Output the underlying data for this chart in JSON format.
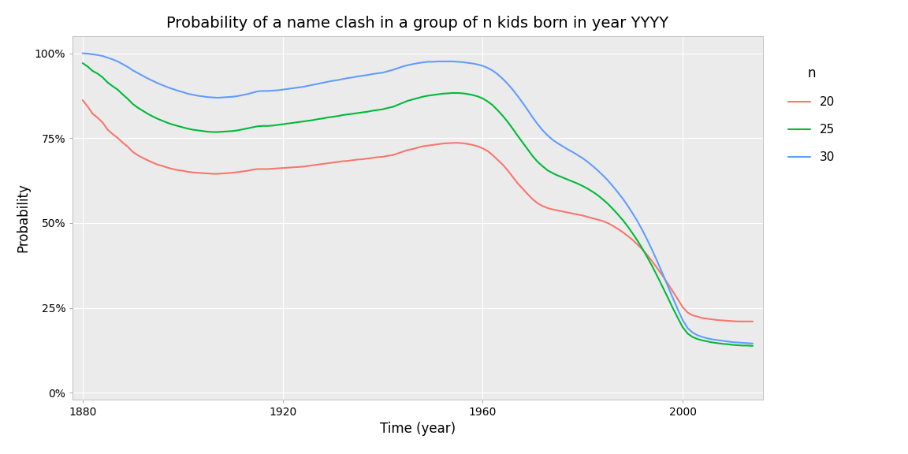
{
  "title": "Probability of a name clash in a group of n kids born in year YYYY",
  "xlabel": "Time (year)",
  "ylabel": "Probability",
  "background_color": "#EBEBEB",
  "grid_color": "#FFFFFF",
  "outer_color": "#FFFFFF",
  "line_colors": {
    "20": "#F8766D",
    "25": "#00BA38",
    "30": "#619CFF"
  },
  "line_width": 1.5,
  "legend_title": "n",
  "years": [
    1880,
    1881,
    1882,
    1883,
    1884,
    1885,
    1886,
    1887,
    1888,
    1889,
    1890,
    1891,
    1892,
    1893,
    1894,
    1895,
    1896,
    1897,
    1898,
    1899,
    1900,
    1901,
    1902,
    1903,
    1904,
    1905,
    1906,
    1907,
    1908,
    1909,
    1910,
    1911,
    1912,
    1913,
    1914,
    1915,
    1916,
    1917,
    1918,
    1919,
    1920,
    1921,
    1922,
    1923,
    1924,
    1925,
    1926,
    1927,
    1928,
    1929,
    1930,
    1931,
    1932,
    1933,
    1934,
    1935,
    1936,
    1937,
    1938,
    1939,
    1940,
    1941,
    1942,
    1943,
    1944,
    1945,
    1946,
    1947,
    1948,
    1949,
    1950,
    1951,
    1952,
    1953,
    1954,
    1955,
    1956,
    1957,
    1958,
    1959,
    1960,
    1961,
    1962,
    1963,
    1964,
    1965,
    1966,
    1967,
    1968,
    1969,
    1970,
    1971,
    1972,
    1973,
    1974,
    1975,
    1976,
    1977,
    1978,
    1979,
    1980,
    1981,
    1982,
    1983,
    1984,
    1985,
    1986,
    1987,
    1988,
    1989,
    1990,
    1991,
    1992,
    1993,
    1994,
    1995,
    1996,
    1997,
    1998,
    1999,
    2000,
    2001,
    2002,
    2003,
    2004,
    2005,
    2006,
    2007,
    2008,
    2009,
    2010,
    2011,
    2012,
    2013,
    2014
  ],
  "n20": [
    0.862,
    0.843,
    0.822,
    0.81,
    0.796,
    0.775,
    0.762,
    0.751,
    0.737,
    0.725,
    0.71,
    0.7,
    0.692,
    0.685,
    0.678,
    0.672,
    0.668,
    0.663,
    0.659,
    0.656,
    0.654,
    0.651,
    0.649,
    0.648,
    0.647,
    0.646,
    0.645,
    0.645,
    0.646,
    0.647,
    0.648,
    0.65,
    0.652,
    0.654,
    0.657,
    0.659,
    0.659,
    0.659,
    0.66,
    0.661,
    0.662,
    0.663,
    0.664,
    0.665,
    0.666,
    0.668,
    0.67,
    0.672,
    0.674,
    0.676,
    0.678,
    0.68,
    0.682,
    0.683,
    0.685,
    0.687,
    0.688,
    0.69,
    0.692,
    0.694,
    0.695,
    0.698,
    0.7,
    0.705,
    0.71,
    0.715,
    0.718,
    0.722,
    0.726,
    0.728,
    0.73,
    0.732,
    0.734,
    0.735,
    0.736,
    0.736,
    0.735,
    0.733,
    0.73,
    0.726,
    0.72,
    0.712,
    0.7,
    0.686,
    0.672,
    0.655,
    0.636,
    0.617,
    0.601,
    0.585,
    0.57,
    0.558,
    0.55,
    0.544,
    0.54,
    0.537,
    0.534,
    0.531,
    0.528,
    0.525,
    0.522,
    0.518,
    0.514,
    0.51,
    0.506,
    0.5,
    0.492,
    0.483,
    0.473,
    0.462,
    0.45,
    0.436,
    0.421,
    0.404,
    0.385,
    0.365,
    0.344,
    0.322,
    0.299,
    0.276,
    0.252,
    0.236,
    0.228,
    0.224,
    0.22,
    0.218,
    0.216,
    0.214,
    0.213,
    0.212,
    0.211,
    0.21,
    0.21,
    0.21,
    0.21
  ],
  "n25": [
    0.971,
    0.961,
    0.948,
    0.94,
    0.929,
    0.914,
    0.903,
    0.893,
    0.879,
    0.866,
    0.851,
    0.84,
    0.831,
    0.822,
    0.814,
    0.807,
    0.801,
    0.795,
    0.79,
    0.786,
    0.782,
    0.778,
    0.775,
    0.773,
    0.771,
    0.769,
    0.768,
    0.768,
    0.769,
    0.77,
    0.771,
    0.773,
    0.776,
    0.779,
    0.782,
    0.785,
    0.786,
    0.786,
    0.787,
    0.789,
    0.791,
    0.793,
    0.795,
    0.797,
    0.799,
    0.801,
    0.803,
    0.806,
    0.808,
    0.811,
    0.813,
    0.815,
    0.818,
    0.82,
    0.822,
    0.824,
    0.826,
    0.828,
    0.831,
    0.833,
    0.835,
    0.839,
    0.842,
    0.848,
    0.854,
    0.86,
    0.864,
    0.868,
    0.872,
    0.875,
    0.877,
    0.879,
    0.881,
    0.882,
    0.883,
    0.883,
    0.882,
    0.88,
    0.877,
    0.873,
    0.867,
    0.858,
    0.847,
    0.832,
    0.816,
    0.798,
    0.778,
    0.757,
    0.737,
    0.717,
    0.697,
    0.68,
    0.667,
    0.655,
    0.647,
    0.64,
    0.634,
    0.628,
    0.622,
    0.616,
    0.609,
    0.601,
    0.592,
    0.582,
    0.57,
    0.557,
    0.542,
    0.526,
    0.509,
    0.49,
    0.469,
    0.447,
    0.423,
    0.397,
    0.37,
    0.341,
    0.311,
    0.281,
    0.25,
    0.221,
    0.193,
    0.174,
    0.164,
    0.158,
    0.154,
    0.151,
    0.148,
    0.146,
    0.144,
    0.143,
    0.141,
    0.14,
    0.139,
    0.139,
    0.138
  ],
  "n30": [
    1.0,
    0.999,
    0.997,
    0.995,
    0.992,
    0.987,
    0.982,
    0.976,
    0.968,
    0.96,
    0.95,
    0.942,
    0.934,
    0.926,
    0.919,
    0.912,
    0.906,
    0.9,
    0.895,
    0.89,
    0.886,
    0.881,
    0.878,
    0.875,
    0.873,
    0.871,
    0.87,
    0.869,
    0.87,
    0.871,
    0.872,
    0.874,
    0.877,
    0.88,
    0.884,
    0.888,
    0.889,
    0.889,
    0.89,
    0.891,
    0.893,
    0.895,
    0.897,
    0.899,
    0.901,
    0.904,
    0.907,
    0.91,
    0.913,
    0.916,
    0.919,
    0.921,
    0.924,
    0.927,
    0.929,
    0.932,
    0.934,
    0.936,
    0.939,
    0.941,
    0.943,
    0.947,
    0.951,
    0.956,
    0.961,
    0.965,
    0.968,
    0.971,
    0.973,
    0.975,
    0.975,
    0.976,
    0.976,
    0.976,
    0.976,
    0.975,
    0.974,
    0.972,
    0.97,
    0.967,
    0.963,
    0.957,
    0.949,
    0.938,
    0.925,
    0.91,
    0.893,
    0.874,
    0.854,
    0.833,
    0.811,
    0.791,
    0.773,
    0.758,
    0.745,
    0.735,
    0.726,
    0.717,
    0.709,
    0.7,
    0.691,
    0.68,
    0.668,
    0.655,
    0.641,
    0.626,
    0.609,
    0.591,
    0.572,
    0.551,
    0.528,
    0.504,
    0.477,
    0.448,
    0.417,
    0.384,
    0.35,
    0.315,
    0.28,
    0.246,
    0.214,
    0.19,
    0.177,
    0.169,
    0.164,
    0.16,
    0.157,
    0.155,
    0.153,
    0.151,
    0.149,
    0.148,
    0.147,
    0.146,
    0.145
  ],
  "xlim": [
    1878,
    2016
  ],
  "ylim": [
    -0.02,
    1.05
  ],
  "xticks": [
    1880,
    1920,
    1960,
    2000
  ],
  "yticks": [
    0.0,
    0.25,
    0.5,
    0.75,
    1.0
  ],
  "ytick_labels": [
    "0%",
    "25%",
    "50%",
    "75%",
    "100%"
  ],
  "title_fontsize": 14,
  "axis_label_fontsize": 12,
  "tick_fontsize": 10,
  "legend_fontsize": 11,
  "legend_title_fontsize": 12
}
